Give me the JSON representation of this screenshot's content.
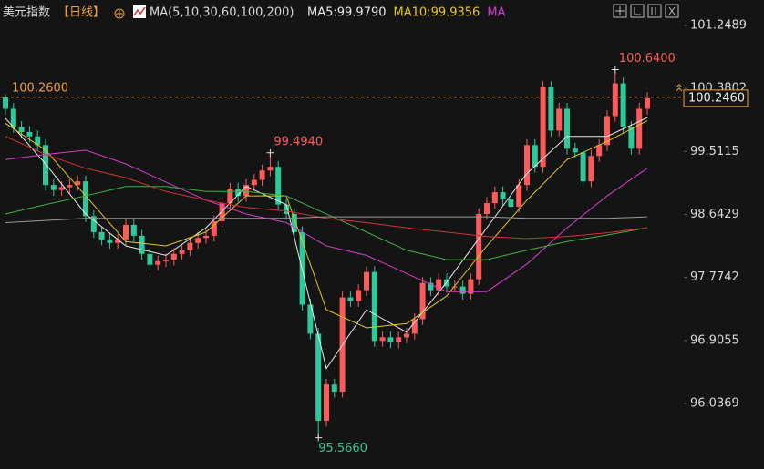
{
  "header": {
    "title": "美元指数",
    "period": "【日线】",
    "ma_setting": "MA(5,10,30,60,100,200)",
    "ma_labels": [
      {
        "text": "MA5:99.9790",
        "color": "#e8e8e8"
      },
      {
        "text": "MA10:99.9356",
        "color": "#e6c619"
      },
      {
        "text": "MA",
        "color": "#d23cd2"
      }
    ]
  },
  "chart_data": {
    "type": "candlestick",
    "ylim": [
      95.134,
      101.6004
    ],
    "yticks": [
      101.2489,
      100.3802,
      99.5115,
      98.6429,
      97.7742,
      96.9055,
      96.0369
    ],
    "up_color": "#ff5a5a",
    "down_color": "#2ec99a",
    "open": [
      100.26,
      100.1,
      99.85,
      99.78,
      99.72,
      99.6,
      99.05,
      98.98,
      99.02,
      99.05,
      99.1,
      98.62,
      98.4,
      98.3,
      98.25,
      98.3,
      98.5,
      98.35,
      98.1,
      97.95,
      98.0,
      98.02,
      98.1,
      98.15,
      98.25,
      98.32,
      98.35,
      98.55,
      98.8,
      99.0,
      98.9,
      99.05,
      99.12,
      99.25,
      99.3,
      98.78,
      98.65,
      98.4,
      97.4,
      97.0,
      95.8,
      96.3,
      96.2,
      97.5,
      97.45,
      97.6,
      97.85,
      96.9,
      96.95,
      96.88,
      96.95,
      97.0,
      97.2,
      97.7,
      97.6,
      97.75,
      97.65,
      97.65,
      97.55,
      97.75,
      98.65,
      98.8,
      98.95,
      98.85,
      98.75,
      99.05,
      99.6,
      99.3,
      100.4,
      99.8,
      100.1,
      99.55,
      99.5,
      99.1,
      99.45,
      99.6,
      100.0,
      100.45,
      99.85,
      99.55,
      100.1
    ],
    "high": [
      100.3,
      100.18,
      99.93,
      99.86,
      99.8,
      99.68,
      99.13,
      99.1,
      99.13,
      99.18,
      99.18,
      98.7,
      98.48,
      98.38,
      98.38,
      98.58,
      98.58,
      98.43,
      98.18,
      98.08,
      98.1,
      98.18,
      98.23,
      98.33,
      98.4,
      98.43,
      98.63,
      98.88,
      99.08,
      99.08,
      99.13,
      99.2,
      99.33,
      99.494,
      99.38,
      98.86,
      98.73,
      98.48,
      97.48,
      97.08,
      96.38,
      96.38,
      97.58,
      97.58,
      97.68,
      97.93,
      97.93,
      97.03,
      97.03,
      97.03,
      97.08,
      97.28,
      97.78,
      97.78,
      97.83,
      97.83,
      97.73,
      97.73,
      97.83,
      98.73,
      98.88,
      99.03,
      99.03,
      98.93,
      99.13,
      99.68,
      99.68,
      100.48,
      100.48,
      100.18,
      100.18,
      99.63,
      99.58,
      99.53,
      99.68,
      100.08,
      100.64,
      100.53,
      99.93,
      100.18,
      100.33
    ],
    "low": [
      100.02,
      99.77,
      99.7,
      99.64,
      99.52,
      98.97,
      98.9,
      98.9,
      98.94,
      98.97,
      98.54,
      98.32,
      98.22,
      98.17,
      98.17,
      98.22,
      98.27,
      98.02,
      97.87,
      97.87,
      97.92,
      97.94,
      98.02,
      98.07,
      98.17,
      98.24,
      98.27,
      98.47,
      98.72,
      98.82,
      98.82,
      98.97,
      99.04,
      99.17,
      98.7,
      98.57,
      98.32,
      97.32,
      96.92,
      95.566,
      95.72,
      96.12,
      96.12,
      97.37,
      97.37,
      97.52,
      96.82,
      96.82,
      96.8,
      96.8,
      96.87,
      96.92,
      97.12,
      97.52,
      97.52,
      97.57,
      97.57,
      97.47,
      97.47,
      97.67,
      98.57,
      98.72,
      98.77,
      98.67,
      98.67,
      98.97,
      99.22,
      99.22,
      99.72,
      99.72,
      99.47,
      99.42,
      99.02,
      99.02,
      99.37,
      99.52,
      99.92,
      99.77,
      99.47,
      99.47,
      100.02
    ],
    "close": [
      100.1,
      99.85,
      99.78,
      99.72,
      99.6,
      99.05,
      98.98,
      99.02,
      99.05,
      99.1,
      98.62,
      98.4,
      98.3,
      98.25,
      98.3,
      98.5,
      98.35,
      98.1,
      97.95,
      98.0,
      98.02,
      98.1,
      98.15,
      98.25,
      98.32,
      98.35,
      98.55,
      98.8,
      99.0,
      98.9,
      99.05,
      99.12,
      99.25,
      99.3,
      98.78,
      98.65,
      98.4,
      97.4,
      97.0,
      95.8,
      96.3,
      96.2,
      97.5,
      97.45,
      97.6,
      97.85,
      96.9,
      96.95,
      96.88,
      96.95,
      97.0,
      97.2,
      97.7,
      97.6,
      97.75,
      97.65,
      97.65,
      97.55,
      97.75,
      98.65,
      98.8,
      98.95,
      98.85,
      98.75,
      99.05,
      99.6,
      99.3,
      100.4,
      99.8,
      100.1,
      99.55,
      99.5,
      99.1,
      99.45,
      99.6,
      100.0,
      100.45,
      99.85,
      99.55,
      100.1,
      100.246
    ],
    "ma_lines": [
      {
        "color": "#e8e8e8",
        "x": [
          0,
          5,
          10,
          15,
          20,
          25,
          30,
          35,
          40,
          45,
          50,
          55,
          60,
          65,
          70,
          75,
          80
        ],
        "values": [
          99.97,
          99.34,
          98.65,
          98.21,
          98.08,
          98.46,
          99.03,
          98.78,
          96.52,
          97.33,
          97.02,
          97.71,
          98.46,
          99.21,
          99.72,
          99.72,
          99.979
        ]
      },
      {
        "color": "#e6c619",
        "x": [
          0,
          5,
          10,
          15,
          20,
          25,
          30,
          35,
          40,
          45,
          50,
          55,
          60,
          65,
          70,
          75,
          80
        ],
        "values": [
          99.9,
          99.53,
          98.9,
          98.27,
          98.21,
          98.4,
          98.9,
          98.9,
          97.33,
          97.08,
          97.14,
          97.52,
          98.21,
          98.84,
          99.4,
          99.65,
          99.9356
        ]
      },
      {
        "color": "#d23cd2",
        "x": [
          0,
          5,
          10,
          15,
          20,
          25,
          30,
          35,
          40,
          45,
          50,
          55,
          60,
          65,
          70,
          75,
          80
        ],
        "values": [
          99.4,
          99.47,
          99.53,
          99.34,
          99.09,
          98.84,
          98.65,
          98.53,
          98.21,
          98.08,
          97.83,
          97.58,
          97.58,
          97.96,
          98.46,
          98.9,
          99.28
        ]
      },
      {
        "color": "#3cb43c",
        "x": [
          0,
          5,
          10,
          15,
          20,
          25,
          30,
          35,
          40,
          45,
          50,
          55,
          60,
          65,
          70,
          75,
          80
        ],
        "values": [
          98.65,
          98.78,
          98.9,
          99.03,
          99.03,
          98.96,
          98.96,
          98.9,
          98.65,
          98.4,
          98.15,
          98.02,
          98.02,
          98.15,
          98.27,
          98.36,
          98.46
        ]
      },
      {
        "color": "#d23232",
        "x": [
          0,
          5,
          10,
          15,
          20,
          25,
          30,
          35,
          40,
          45,
          50,
          55,
          60,
          65,
          70,
          75,
          80
        ],
        "values": [
          99.72,
          99.47,
          99.28,
          99.15,
          98.96,
          98.84,
          98.74,
          98.69,
          98.59,
          98.53,
          98.46,
          98.4,
          98.34,
          98.31,
          98.34,
          98.39,
          98.46
        ]
      },
      {
        "color": "#9a9a9a",
        "x": [
          0,
          5,
          10,
          15,
          20,
          25,
          30,
          35,
          40,
          45,
          50,
          55,
          60,
          65,
          70,
          75,
          80
        ],
        "values": [
          98.53,
          98.56,
          98.59,
          98.59,
          98.59,
          98.59,
          98.59,
          98.59,
          98.61,
          98.61,
          98.61,
          98.61,
          98.61,
          98.59,
          98.59,
          98.59,
          98.61
        ]
      }
    ],
    "annotations": [
      {
        "value": 100.64,
        "label": "100.6400",
        "index": 76,
        "color": "#ff5a5a"
      },
      {
        "value": 99.494,
        "label": "99.4940",
        "index": 33,
        "color": "#ff5a5a"
      },
      {
        "value": 95.566,
        "label": "95.5660",
        "index": 39,
        "color": "#2ec99a"
      }
    ],
    "reference_line": {
      "value": 100.26,
      "label": "100.2600",
      "color": "#f0a030"
    },
    "last_price": {
      "value": 100.246,
      "label": "100.2460",
      "color": "#f0a030"
    }
  }
}
